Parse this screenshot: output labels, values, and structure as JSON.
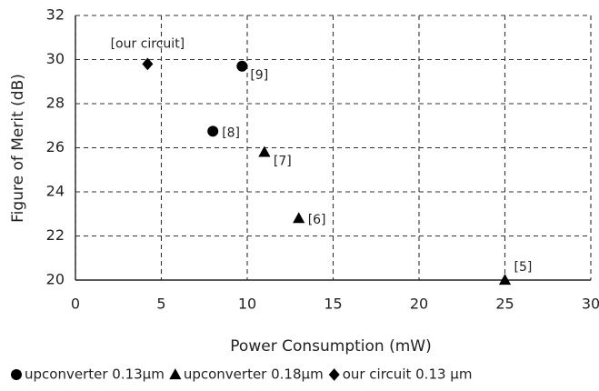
{
  "chart_data": {
    "type": "scatter",
    "xlabel": "Power Consumption (mW)",
    "ylabel": "Figure of Merit (dB)",
    "xlim": [
      0,
      30
    ],
    "ylim": [
      20,
      32
    ],
    "xticks": [
      0,
      5,
      10,
      15,
      20,
      25,
      30
    ],
    "yticks": [
      20,
      22,
      24,
      26,
      28,
      30,
      32
    ],
    "grid": true,
    "legend": "bottom",
    "series": [
      {
        "name": "upconverter 0.13µm",
        "color": "#000000",
        "marker": "circle",
        "x": [
          8,
          9.7
        ],
        "values": [
          26.75,
          29.7
        ],
        "labels": [
          "[8]",
          "[9]"
        ]
      },
      {
        "name": "upconverter 0.18µm",
        "color": "#000000",
        "marker": "triangle",
        "x": [
          11,
          13,
          25
        ],
        "values": [
          25.8,
          22.8,
          20
        ],
        "labels": [
          "[7]",
          "[6]",
          "[5]"
        ]
      },
      {
        "name": "our circuit 0.13 µm",
        "color": "#000000",
        "marker": "diamond",
        "x": [
          4.2
        ],
        "values": [
          29.8
        ],
        "labels": [
          "[our circuit]"
        ]
      }
    ]
  }
}
